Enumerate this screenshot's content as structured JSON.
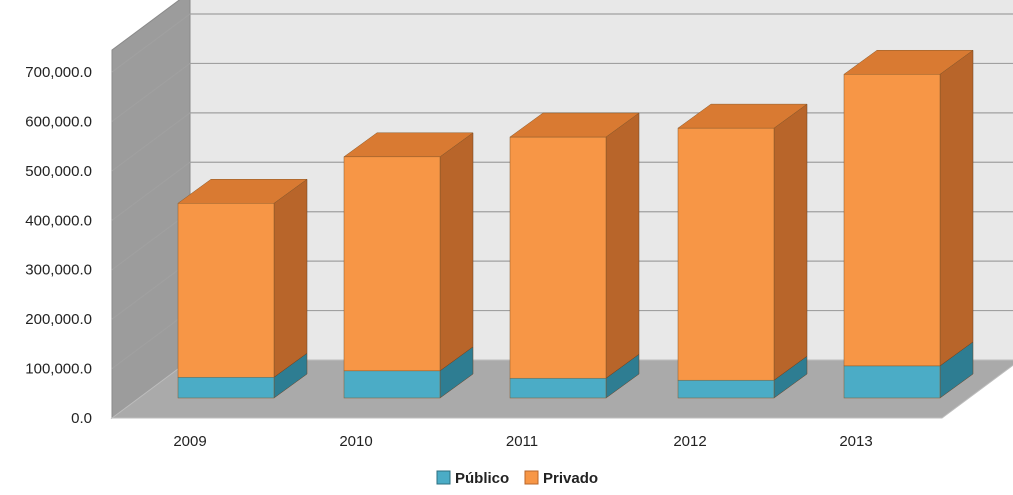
{
  "chart_data": {
    "type": "bar",
    "stacked": true,
    "three_d": true,
    "categories": [
      "2009",
      "2010",
      "2011",
      "2012",
      "2013"
    ],
    "series": [
      {
        "name": "Público",
        "values": [
          42000,
          55000,
          40000,
          36000,
          65000
        ]
      },
      {
        "name": "Privado",
        "values": [
          352000,
          433000,
          488000,
          510000,
          590000
        ]
      }
    ],
    "ylim": [
      0,
      700000
    ],
    "y_ticks": [
      "0.0",
      "100,000.0",
      "200,000.0",
      "300,000.0",
      "400,000.0",
      "500,000.0",
      "600,000.0",
      "700,000.0"
    ],
    "y_tick_values": [
      0,
      100000,
      200000,
      300000,
      400000,
      500000,
      600000,
      700000
    ],
    "grid": true,
    "legend_position": "bottom-center",
    "colors": {
      "publico_front": "#4bacc6",
      "publico_side": "#2e7d92",
      "publico_top": "#3d94ab",
      "privado_front": "#f79646",
      "privado_side": "#b8652a",
      "privado_top": "#d97a32",
      "wall": "#e8e8e8",
      "side_wall": "#9c9c9c",
      "floor": "#aaaaaa"
    }
  }
}
